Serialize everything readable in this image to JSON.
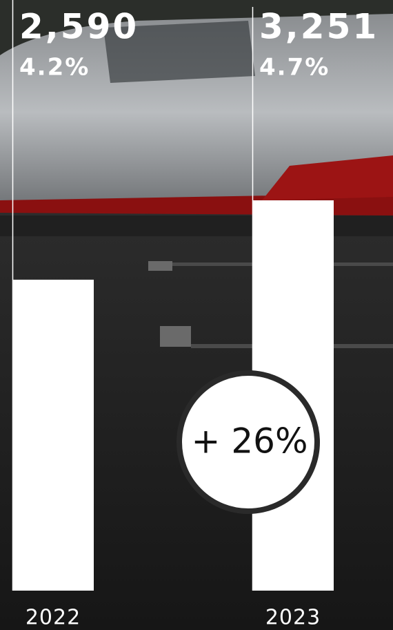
{
  "chart_data": {
    "type": "bar",
    "categories": [
      "2022",
      "2023"
    ],
    "values": [
      2590,
      3251
    ],
    "value_labels": [
      "2,590",
      "3,251"
    ],
    "shares": {
      "values": [
        4.2,
        4.7
      ],
      "value_labels": [
        "4.2%",
        "4.7%"
      ]
    },
    "annotation": "+ 26%",
    "color": "#ffffff"
  }
}
